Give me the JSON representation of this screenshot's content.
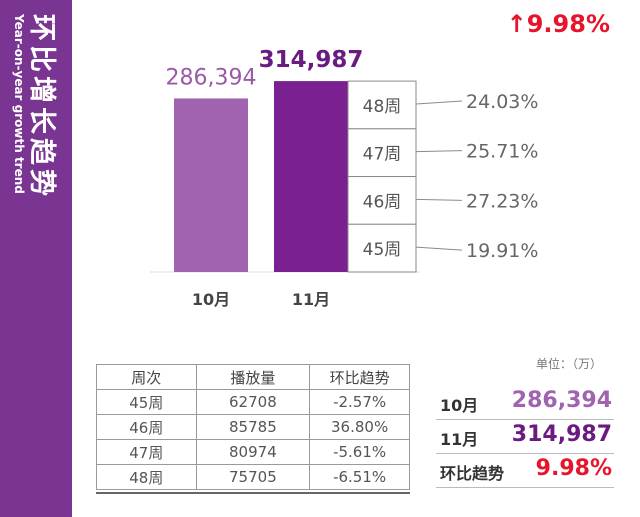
{
  "sidebar": {
    "title": "环比增长趋势",
    "subtitle": "Year-on-year growth trend"
  },
  "badge": {
    "arrow": "↑",
    "value": "9.98%"
  },
  "colors": {
    "sidebar": "#7a3492",
    "oct_bar": "#a162b0",
    "nov_bar": "#7a2090",
    "red": "#e8142c"
  },
  "chart_data": {
    "type": "bar",
    "categories": [
      "10月",
      "11月"
    ],
    "values": [
      286394,
      314987
    ],
    "value_labels": [
      "286,394",
      "314,987"
    ],
    "ylim": [
      0,
      330000
    ],
    "breakdown": [
      {
        "week": "48周",
        "pct": "24.03%",
        "share": 24.03
      },
      {
        "week": "47周",
        "pct": "25.71%",
        "share": 25.71
      },
      {
        "week": "46周",
        "pct": "27.23%",
        "share": 27.23
      },
      {
        "week": "45周",
        "pct": "19.91%",
        "share": 19.91
      }
    ]
  },
  "table": {
    "headers": [
      "周次",
      "播放量",
      "环比趋势"
    ],
    "rows": [
      [
        "45周",
        "62708",
        "-2.57%"
      ],
      [
        "46周",
        "85785",
        "36.80%"
      ],
      [
        "47周",
        "80974",
        "-5.61%"
      ],
      [
        "48周",
        "75705",
        "-6.51%"
      ]
    ]
  },
  "summary": {
    "unit": "单位：（万）",
    "rows": [
      {
        "label": "10月",
        "value": "286,394"
      },
      {
        "label": "11月",
        "value": "314,987"
      },
      {
        "label": "环比趋势",
        "value": "9.98%"
      }
    ]
  }
}
